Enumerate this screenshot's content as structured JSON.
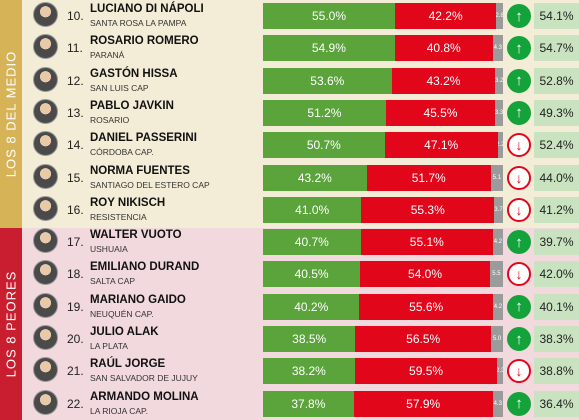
{
  "sections": {
    "medio": "LOS 8 DEL MEDIO",
    "peores": "LOS 8 PEORES"
  },
  "rows": [
    {
      "rank": "10.",
      "name": "LUCIANO DI NÁPOLI",
      "city": "SANTA ROSA LA PAMPA",
      "pos": "55.0%",
      "neg": "42.2%",
      "nsnc": "2.8",
      "trend": "up",
      "approval": "54.1%",
      "pos_v": 55.0,
      "neg_v": 42.2,
      "nsnc_v": 2.8
    },
    {
      "rank": "11.",
      "name": "ROSARIO ROMERO",
      "city": "PARANÁ",
      "pos": "54.9%",
      "neg": "40.8%",
      "nsnc": "4.3",
      "trend": "up",
      "approval": "54.7%",
      "pos_v": 54.9,
      "neg_v": 40.8,
      "nsnc_v": 4.3
    },
    {
      "rank": "12.",
      "name": "GASTÓN HISSA",
      "city": "SAN LUIS CAP",
      "pos": "53.6%",
      "neg": "43.2%",
      "nsnc": "3.2",
      "trend": "up",
      "approval": "52.8%",
      "pos_v": 53.6,
      "neg_v": 43.2,
      "nsnc_v": 3.2
    },
    {
      "rank": "13.",
      "name": "PABLO JAVKIN",
      "city": "ROSARIO",
      "pos": "51.2%",
      "neg": "45.5%",
      "nsnc": "3.3",
      "trend": "up",
      "approval": "49.3%",
      "pos_v": 51.2,
      "neg_v": 45.5,
      "nsnc_v": 3.3
    },
    {
      "rank": "14.",
      "name": "DANIEL PASSERINI",
      "city": "CÓRDOBA CAP.",
      "pos": "50.7%",
      "neg": "47.1%",
      "nsnc": "2.2",
      "trend": "down",
      "approval": "52.4%",
      "pos_v": 50.7,
      "neg_v": 47.1,
      "nsnc_v": 2.2
    },
    {
      "rank": "15.",
      "name": "NORMA FUENTES",
      "city": "SANTIAGO DEL ESTERO CAP",
      "pos": "43.2%",
      "neg": "51.7%",
      "nsnc": "5.1",
      "trend": "down",
      "approval": "44.0%",
      "pos_v": 43.2,
      "neg_v": 51.7,
      "nsnc_v": 5.1
    },
    {
      "rank": "16.",
      "name": "ROY NIKISCH",
      "city": "RESISTENCIA",
      "pos": "41.0%",
      "neg": "55.3%",
      "nsnc": "3.7",
      "trend": "down",
      "approval": "41.2%",
      "pos_v": 41.0,
      "neg_v": 55.3,
      "nsnc_v": 3.7
    },
    {
      "rank": "17.",
      "name": "WALTER VUOTO",
      "city": "USHUAIA",
      "pos": "40.7%",
      "neg": "55.1%",
      "nsnc": "4.2",
      "trend": "up",
      "approval": "39.7%",
      "pos_v": 40.7,
      "neg_v": 55.1,
      "nsnc_v": 4.2
    },
    {
      "rank": "18.",
      "name": "EMILIANO DURAND",
      "city": "SALTA CAP",
      "pos": "40.5%",
      "neg": "54.0%",
      "nsnc": "5.5",
      "trend": "down",
      "approval": "42.0%",
      "pos_v": 40.5,
      "neg_v": 54.0,
      "nsnc_v": 5.5
    },
    {
      "rank": "19.",
      "name": "MARIANO GAIDO",
      "city": "NEUQUÉN CAP.",
      "pos": "40.2%",
      "neg": "55.6%",
      "nsnc": "4.2",
      "trend": "up",
      "approval": "40.1%",
      "pos_v": 40.2,
      "neg_v": 55.6,
      "nsnc_v": 4.2
    },
    {
      "rank": "20.",
      "name": "JULIO ALAK",
      "city": "LA PLATA",
      "pos": "38.5%",
      "neg": "56.5%",
      "nsnc": "5.0",
      "trend": "up",
      "approval": "38.3%",
      "pos_v": 38.5,
      "neg_v": 56.5,
      "nsnc_v": 5.0
    },
    {
      "rank": "21.",
      "name": "RAÚL JORGE",
      "city": "SAN SALVADOR DE JUJUY",
      "pos": "38.2%",
      "neg": "59.5%",
      "nsnc": "2.3",
      "trend": "down",
      "approval": "38.8%",
      "pos_v": 38.2,
      "neg_v": 59.5,
      "nsnc_v": 2.3
    },
    {
      "rank": "22.",
      "name": "ARMANDO MOLINA",
      "city": "LA RIOJA CAP.",
      "pos": "37.8%",
      "neg": "57.9%",
      "nsnc": "4.3",
      "trend": "up",
      "approval": "36.4%",
      "pos_v": 37.8,
      "neg_v": 57.9,
      "nsnc_v": 4.3
    }
  ],
  "colors": {
    "positive": "#5ba33b",
    "negative": "#e2061b",
    "nsnc": "#9b9b9b",
    "up": "#14a33b",
    "down": "#e2061b"
  },
  "icons": {
    "up": "arrow-up-icon",
    "down": "arrow-down-icon"
  }
}
